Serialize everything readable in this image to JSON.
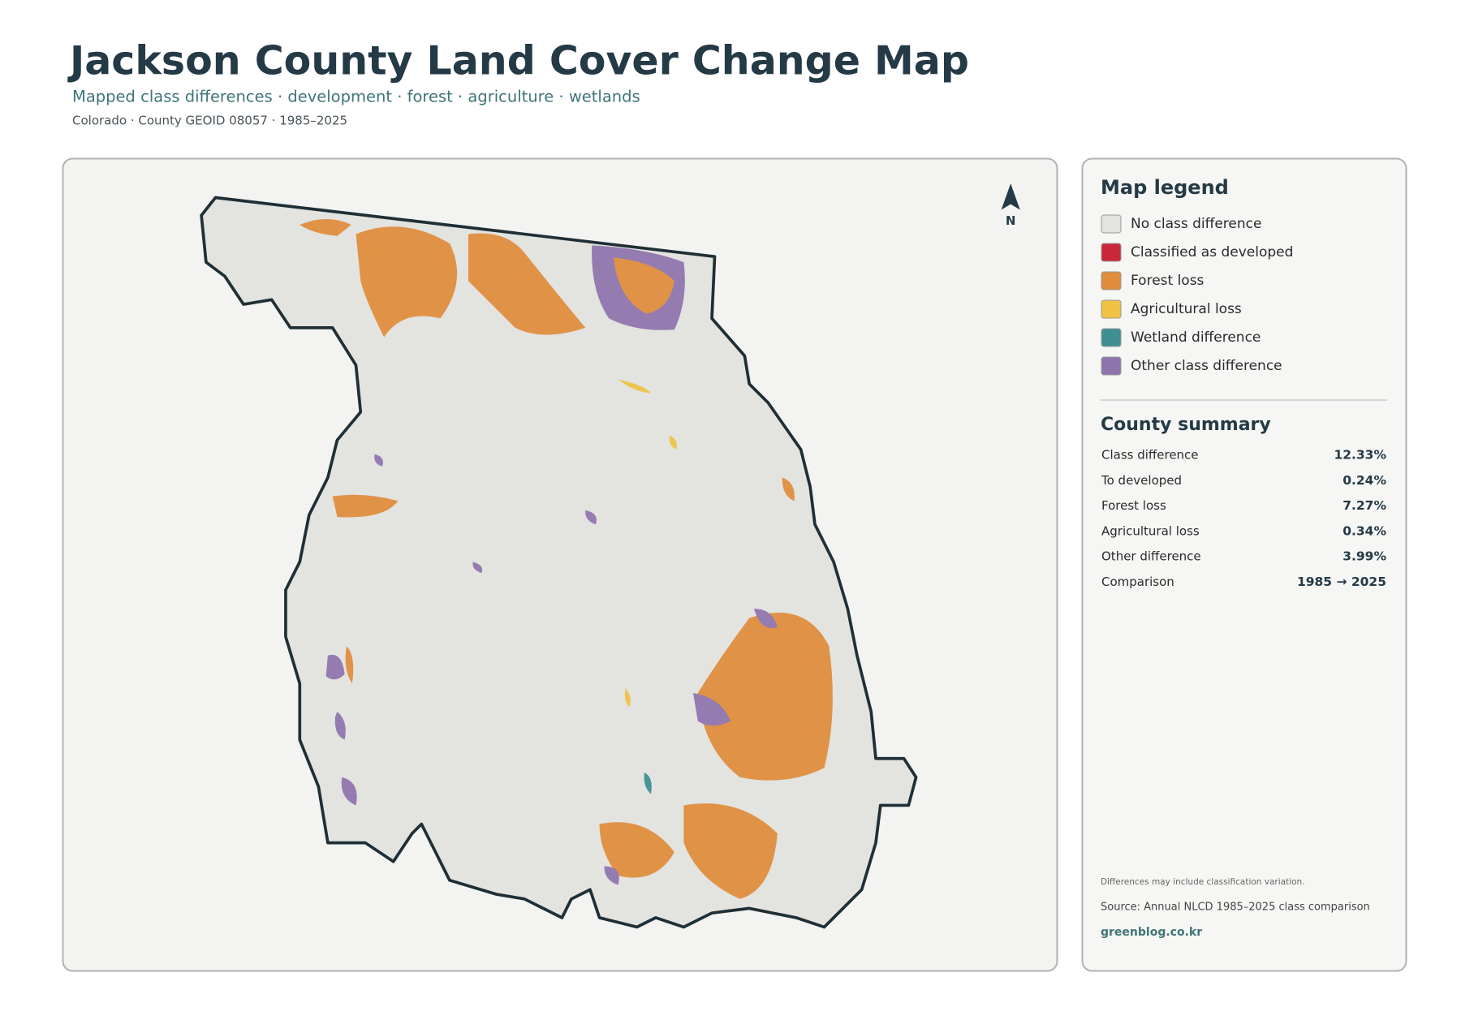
{
  "header": {
    "title": "Jackson County Land Cover Change Map",
    "subtitle": "Mapped class differences · development · forest · agriculture · wetlands",
    "meta": "Colorado · County GEOID 08057 · 1985–2025"
  },
  "map": {
    "north_label": "N"
  },
  "legend": {
    "title": "Map legend",
    "items": [
      {
        "label": "No class difference",
        "color": "#e3e3e0"
      },
      {
        "label": "Classified as developed",
        "color": "#c8283a"
      },
      {
        "label": "Forest loss",
        "color": "#e08c3a"
      },
      {
        "label": "Agricultural loss",
        "color": "#f0c244"
      },
      {
        "label": "Wetland difference",
        "color": "#3f8f91"
      },
      {
        "label": "Other class difference",
        "color": "#8e74ad"
      }
    ]
  },
  "summary": {
    "title": "County summary",
    "rows": [
      [
        "Class difference",
        "12.33%"
      ],
      [
        "To developed",
        "0.24%"
      ],
      [
        "Forest loss",
        "7.27%"
      ],
      [
        "Agricultural loss",
        "0.34%"
      ],
      [
        "Other difference",
        "3.99%"
      ],
      [
        "Comparison",
        "1985 → 2025"
      ]
    ]
  },
  "footer": {
    "note": "Differences may include classification variation.",
    "source": "Source: Annual NLCD 1985–2025 class comparison",
    "site": "greenblog.co.kr"
  }
}
